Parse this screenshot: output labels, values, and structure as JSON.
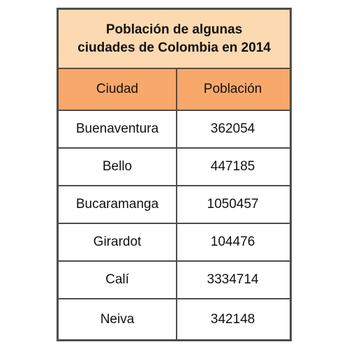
{
  "chart_data": {
    "type": "table",
    "title_lines": [
      "Población de algunas",
      "ciudades de Colombia en 2014"
    ],
    "columns": [
      "Ciudad",
      "Población"
    ],
    "rows": [
      [
        "Buenaventura",
        "362054"
      ],
      [
        "Bello",
        "447185"
      ],
      [
        "Bucaramanga",
        "1050457"
      ],
      [
        "Girardot",
        "104476"
      ],
      [
        "Calí",
        "3334714"
      ],
      [
        "Neiva",
        "342148"
      ]
    ]
  },
  "colors": {
    "title_bg": "#fcd9b0",
    "header_bg": "#f7a86a",
    "border": "#4d4d4d"
  }
}
